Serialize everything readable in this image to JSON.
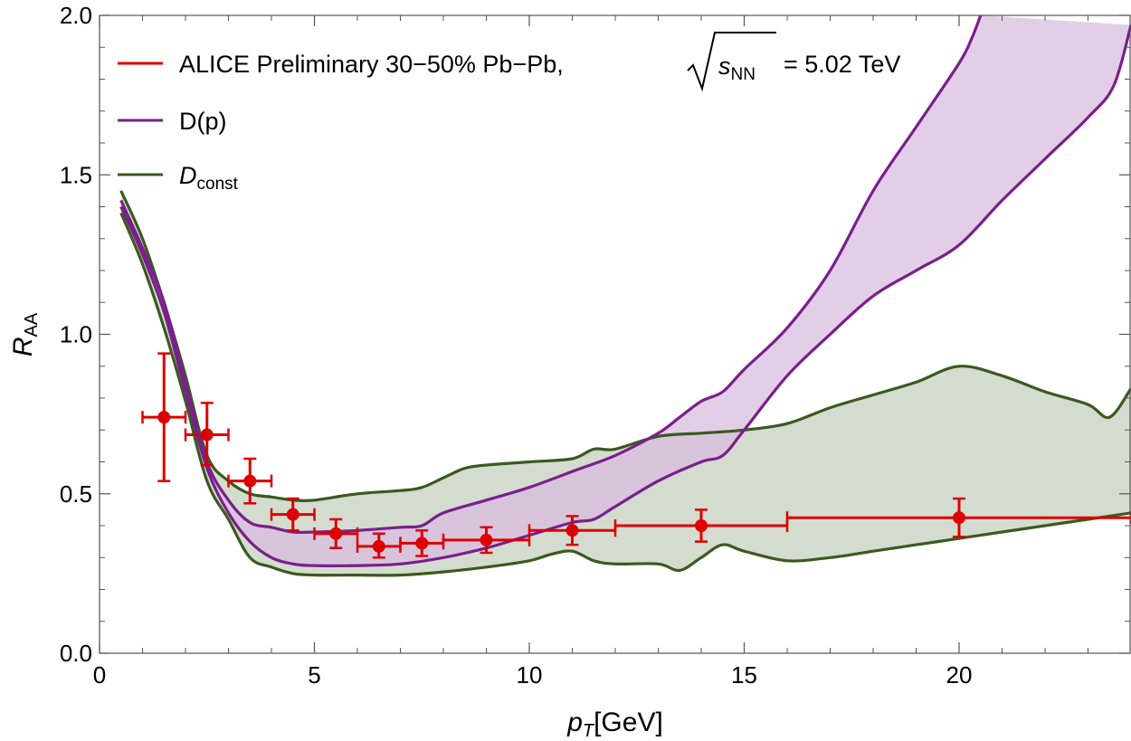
{
  "chart_data": {
    "type": "line",
    "xlabel": "p_T[GeV]",
    "ylabel": "R_AA",
    "xlim": [
      0,
      24
    ],
    "ylim": [
      0,
      2
    ],
    "xticks": [
      0,
      5,
      10,
      15,
      20
    ],
    "xtick_labels": [
      "0",
      "5",
      "10",
      "15",
      "20"
    ],
    "yticks": [
      0,
      0.5,
      1.0,
      1.5,
      2.0
    ],
    "ytick_labels": [
      "0.0",
      "0.5",
      "1.0",
      "1.5",
      "2.0"
    ],
    "legend": {
      "position": "top-left",
      "entries": [
        {
          "label": "ALICE Preliminary 30−50% Pb−Pb,",
          "sqrt_label": "s",
          "sqrt_sub": "NN",
          "suffix": "= 5.02 TeV",
          "color": "#dd0000"
        },
        {
          "label": "D(p)",
          "color": "#7a1f8c"
        },
        {
          "label": "D",
          "sub": "const",
          "color": "#3a5a1f"
        }
      ]
    },
    "series": [
      {
        "name": "ALICE Preliminary 30-50% Pb-Pb",
        "kind": "points",
        "color": "#dd0000",
        "points": [
          {
            "x": 1.5,
            "y": 0.74,
            "xerr": 0.5,
            "ylo": 0.54,
            "yhi": 0.94
          },
          {
            "x": 2.5,
            "y": 0.685,
            "xerr": 0.5,
            "ylo": 0.59,
            "yhi": 0.785
          },
          {
            "x": 3.5,
            "y": 0.54,
            "xerr": 0.5,
            "ylo": 0.47,
            "yhi": 0.61
          },
          {
            "x": 4.5,
            "y": 0.435,
            "xerr": 0.5,
            "ylo": 0.385,
            "yhi": 0.485
          },
          {
            "x": 5.5,
            "y": 0.375,
            "xerr": 0.5,
            "ylo": 0.33,
            "yhi": 0.42
          },
          {
            "x": 6.5,
            "y": 0.335,
            "xerr": 0.5,
            "ylo": 0.3,
            "yhi": 0.375
          },
          {
            "x": 7.5,
            "y": 0.345,
            "xerr": 0.5,
            "ylo": 0.305,
            "yhi": 0.385
          },
          {
            "x": 9.0,
            "y": 0.355,
            "xerr": 1.0,
            "ylo": 0.315,
            "yhi": 0.395
          },
          {
            "x": 11.0,
            "y": 0.385,
            "xerr": 1.0,
            "ylo": 0.34,
            "yhi": 0.43
          },
          {
            "x": 14.0,
            "y": 0.4,
            "xerr": 2.0,
            "ylo": 0.35,
            "yhi": 0.45
          },
          {
            "x": 20.0,
            "y": 0.425,
            "xerr": 4.0,
            "ylo": 0.365,
            "yhi": 0.485
          }
        ]
      },
      {
        "name": "D(p)",
        "kind": "band",
        "color": "#7a1f8c",
        "fill": "#d9bde0",
        "upper": [
          [
            0.5,
            1.42
          ],
          [
            1.0,
            1.27
          ],
          [
            1.5,
            1.1
          ],
          [
            2.0,
            0.85
          ],
          [
            2.5,
            0.6
          ],
          [
            3.0,
            0.48
          ],
          [
            3.5,
            0.41
          ],
          [
            4.0,
            0.395
          ],
          [
            4.5,
            0.38
          ],
          [
            5.0,
            0.38
          ],
          [
            6.0,
            0.385
          ],
          [
            7.0,
            0.395
          ],
          [
            7.5,
            0.4
          ],
          [
            8.0,
            0.44
          ],
          [
            9.0,
            0.48
          ],
          [
            10.0,
            0.52
          ],
          [
            11.0,
            0.57
          ],
          [
            12.0,
            0.62
          ],
          [
            13.0,
            0.69
          ],
          [
            13.5,
            0.74
          ],
          [
            14.0,
            0.79
          ],
          [
            14.5,
            0.82
          ],
          [
            15.0,
            0.89
          ],
          [
            16.0,
            1.02
          ],
          [
            17.0,
            1.2
          ],
          [
            18.0,
            1.45
          ],
          [
            19.0,
            1.65
          ],
          [
            20.0,
            1.85
          ],
          [
            20.3,
            1.93
          ],
          [
            20.5,
            2.0
          ]
        ],
        "lower": [
          [
            0.5,
            1.4
          ],
          [
            1.0,
            1.25
          ],
          [
            1.5,
            1.07
          ],
          [
            2.0,
            0.82
          ],
          [
            2.5,
            0.58
          ],
          [
            3.0,
            0.44
          ],
          [
            3.5,
            0.35
          ],
          [
            4.0,
            0.3
          ],
          [
            4.5,
            0.28
          ],
          [
            5.0,
            0.275
          ],
          [
            6.0,
            0.275
          ],
          [
            7.0,
            0.28
          ],
          [
            8.0,
            0.3
          ],
          [
            9.0,
            0.33
          ],
          [
            10.0,
            0.37
          ],
          [
            11.0,
            0.41
          ],
          [
            11.5,
            0.42
          ],
          [
            12.0,
            0.46
          ],
          [
            13.0,
            0.54
          ],
          [
            14.0,
            0.6
          ],
          [
            14.5,
            0.62
          ],
          [
            15.0,
            0.7
          ],
          [
            16.0,
            0.87
          ],
          [
            17.0,
            1.0
          ],
          [
            18.0,
            1.12
          ],
          [
            19.0,
            1.2
          ],
          [
            20.0,
            1.28
          ],
          [
            21.0,
            1.42
          ],
          [
            22.0,
            1.55
          ],
          [
            23.0,
            1.68
          ],
          [
            23.6,
            1.78
          ],
          [
            24.0,
            1.97
          ]
        ]
      },
      {
        "name": "D_const",
        "kind": "band",
        "color": "#3a5a1f",
        "fill": "#d4dccf",
        "upper": [
          [
            0.5,
            1.45
          ],
          [
            1.0,
            1.3
          ],
          [
            1.5,
            1.1
          ],
          [
            2.0,
            0.87
          ],
          [
            2.5,
            0.62
          ],
          [
            3.0,
            0.54
          ],
          [
            3.5,
            0.5
          ],
          [
            4.0,
            0.49
          ],
          [
            4.5,
            0.48
          ],
          [
            5.0,
            0.48
          ],
          [
            6.0,
            0.5
          ],
          [
            7.0,
            0.51
          ],
          [
            7.5,
            0.52
          ],
          [
            8.0,
            0.55
          ],
          [
            8.5,
            0.58
          ],
          [
            9.0,
            0.59
          ],
          [
            10.0,
            0.6
          ],
          [
            11.0,
            0.61
          ],
          [
            11.5,
            0.64
          ],
          [
            12.0,
            0.64
          ],
          [
            13.0,
            0.68
          ],
          [
            14.0,
            0.69
          ],
          [
            15.0,
            0.7
          ],
          [
            16.0,
            0.72
          ],
          [
            17.0,
            0.77
          ],
          [
            18.0,
            0.81
          ],
          [
            19.0,
            0.85
          ],
          [
            20.0,
            0.9
          ],
          [
            21.0,
            0.87
          ],
          [
            22.0,
            0.82
          ],
          [
            23.0,
            0.78
          ],
          [
            23.5,
            0.74
          ],
          [
            24.0,
            0.83
          ]
        ],
        "lower": [
          [
            0.5,
            1.38
          ],
          [
            1.0,
            1.22
          ],
          [
            1.5,
            1.02
          ],
          [
            2.0,
            0.79
          ],
          [
            2.5,
            0.54
          ],
          [
            3.0,
            0.42
          ],
          [
            3.5,
            0.3
          ],
          [
            4.0,
            0.27
          ],
          [
            4.5,
            0.25
          ],
          [
            5.0,
            0.245
          ],
          [
            6.0,
            0.245
          ],
          [
            7.0,
            0.245
          ],
          [
            8.0,
            0.255
          ],
          [
            9.0,
            0.27
          ],
          [
            10.0,
            0.29
          ],
          [
            10.5,
            0.31
          ],
          [
            11.0,
            0.32
          ],
          [
            11.5,
            0.29
          ],
          [
            12.0,
            0.28
          ],
          [
            13.0,
            0.28
          ],
          [
            13.5,
            0.26
          ],
          [
            14.0,
            0.3
          ],
          [
            14.5,
            0.34
          ],
          [
            15.0,
            0.32
          ],
          [
            16.0,
            0.29
          ],
          [
            17.0,
            0.3
          ],
          [
            18.0,
            0.32
          ],
          [
            19.0,
            0.34
          ],
          [
            20.0,
            0.36
          ],
          [
            21.0,
            0.38
          ],
          [
            22.0,
            0.4
          ],
          [
            23.0,
            0.42
          ],
          [
            24.0,
            0.44
          ]
        ]
      }
    ]
  }
}
